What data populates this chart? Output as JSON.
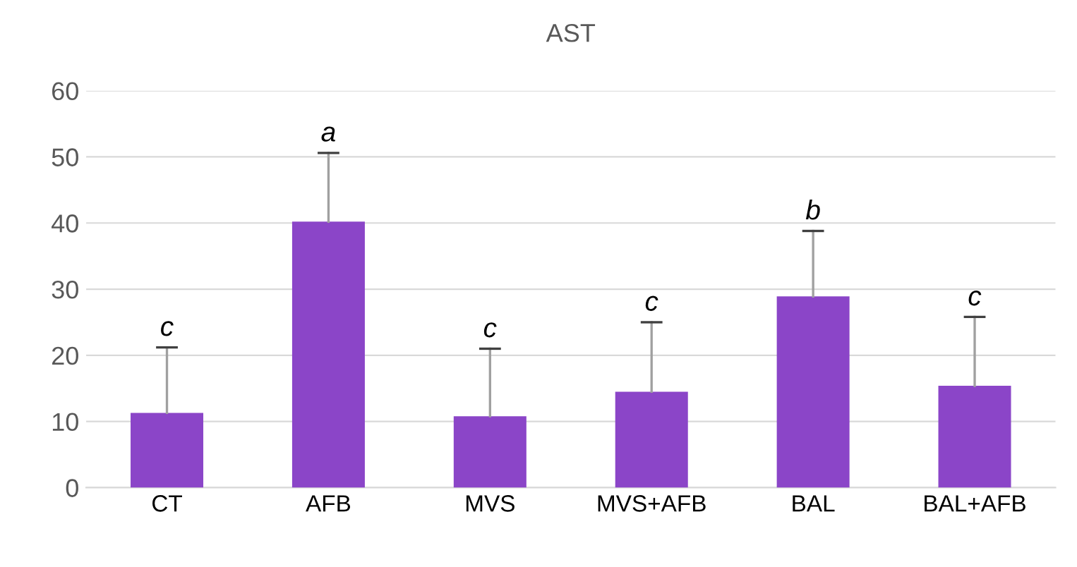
{
  "chart_data": {
    "type": "bar",
    "title": "AST",
    "categories": [
      "CT",
      "AFB",
      "MVS",
      "MVS+AFB",
      "BAL",
      "BAL+AFB"
    ],
    "values": [
      11.3,
      40.2,
      10.8,
      14.5,
      28.9,
      15.4
    ],
    "errors": [
      [
        11.3,
        21.2
      ],
      [
        40.2,
        50.6
      ],
      [
        10.8,
        21
      ],
      [
        14.5,
        25
      ],
      [
        28.9,
        38.8
      ],
      [
        15.4,
        25.8
      ]
    ],
    "color": "#8b45c8",
    "ylim": [
      0,
      60
    ],
    "yticks": [
      0,
      10,
      20,
      30,
      40,
      50,
      60
    ],
    "grid": "y",
    "annotations": [
      {
        "text": "c",
        "x": "CT",
        "y": 21.2
      },
      {
        "text": "a",
        "x": "AFB",
        "y": 50.6
      },
      {
        "text": "c",
        "x": "MVS",
        "y": 21
      },
      {
        "text": "c",
        "x": "MVS+AFB",
        "y": 25
      },
      {
        "text": "b",
        "x": "BAL",
        "y": 38.8
      },
      {
        "text": "c",
        "x": "BAL+AFB",
        "y": 25.8
      }
    ]
  }
}
